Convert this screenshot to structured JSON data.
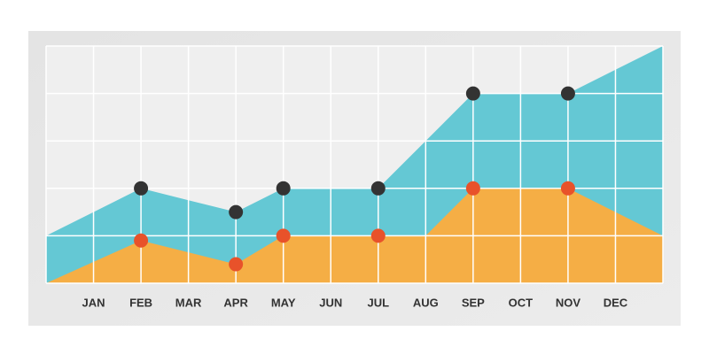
{
  "chart_data": {
    "type": "area",
    "categories": [
      null,
      "JAN",
      "FEB",
      "MAR",
      "APR",
      "MAY",
      "JUN",
      "JUL",
      "AUG",
      "SEP",
      "OCT",
      "NOV",
      "DEC",
      null
    ],
    "series": [
      {
        "color": "#64c8d4",
        "marker_color": "#333333",
        "markers": [
          2,
          4,
          5,
          7,
          9,
          11
        ],
        "values": [
          1,
          1.5,
          2,
          1.75,
          1.5,
          2,
          2,
          2,
          3,
          4,
          4,
          4,
          4.5,
          5
        ]
      },
      {
        "color": "#f5ae45",
        "marker_color": "#e8522a",
        "markers": [
          2,
          4,
          5,
          7,
          9,
          11
        ],
        "values": [
          0,
          0.45,
          0.9,
          0.65,
          0.4,
          1,
          1,
          1,
          1,
          2,
          2,
          2,
          1.5,
          1
        ]
      }
    ],
    "ylim": [
      0,
      5
    ],
    "yticks": [
      0,
      1,
      2,
      3,
      4,
      5
    ],
    "grid": true
  }
}
